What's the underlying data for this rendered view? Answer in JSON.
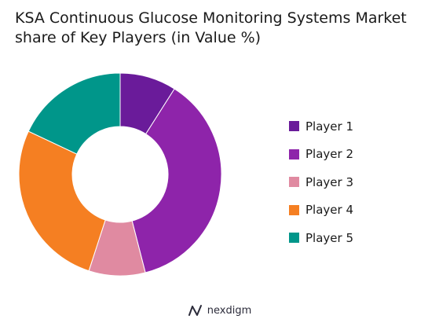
{
  "chart_data": {
    "type": "pie",
    "title_lines": [
      "KSA Continuous Glucose Monitoring Systems Market",
      "share of Key Players (in Value %)"
    ],
    "series": [
      {
        "name": "Player 1",
        "value": 9,
        "color": "#6a1b9a"
      },
      {
        "name": "Player 2",
        "value": 37,
        "color": "#8e24aa"
      },
      {
        "name": "Player 3",
        "value": 9,
        "color": "#e08aa1"
      },
      {
        "name": "Player 4",
        "value": 27,
        "color": "#f57f22"
      },
      {
        "name": "Player 5",
        "value": 18,
        "color": "#00968a"
      }
    ],
    "legend_placement": "right",
    "donut": true
  },
  "branding": {
    "logo_text": "nexdigm",
    "logo_icon": "nexdigm-n-icon"
  }
}
